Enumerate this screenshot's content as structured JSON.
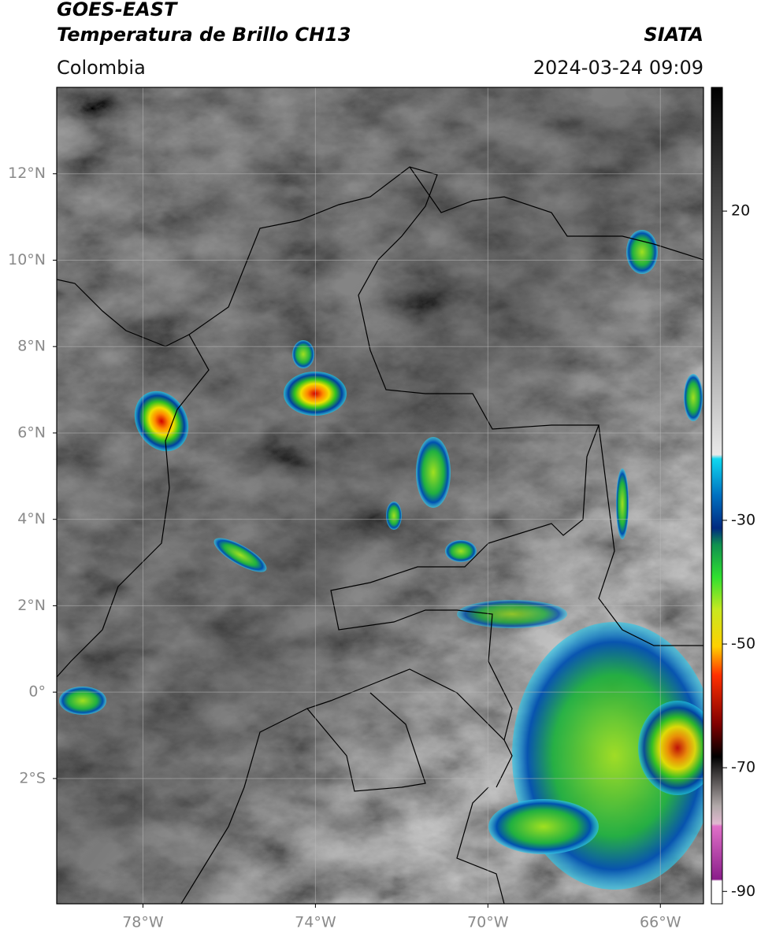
{
  "header": {
    "title_line1": "GOES-EAST",
    "title_line2": "Temperatura de Brillo CH13",
    "source": "SIATA",
    "region": "Colombia",
    "datetime": "2024-03-24 09:09"
  },
  "map": {
    "xlim": [
      -80,
      -65
    ],
    "ylim": [
      -4.9,
      14
    ],
    "xticks": [
      {
        "value": -78,
        "label": "78°W"
      },
      {
        "value": -74,
        "label": "74°W"
      },
      {
        "value": -70,
        "label": "70°W"
      },
      {
        "value": -66,
        "label": "66°W"
      }
    ],
    "yticks": [
      {
        "value": 12,
        "label": "12°N"
      },
      {
        "value": 10,
        "label": "10°N"
      },
      {
        "value": 8,
        "label": "8°N"
      },
      {
        "value": 6,
        "label": "6°N"
      },
      {
        "value": 4,
        "label": "4°N"
      },
      {
        "value": 2,
        "label": "2°N"
      },
      {
        "value": 0,
        "label": "0°"
      },
      {
        "value": -2,
        "label": "2°S"
      }
    ],
    "grid": true
  },
  "colorbar": {
    "lim": [
      -92,
      40
    ],
    "ticks": [
      20,
      -30,
      -50,
      -70,
      -90
    ]
  }
}
